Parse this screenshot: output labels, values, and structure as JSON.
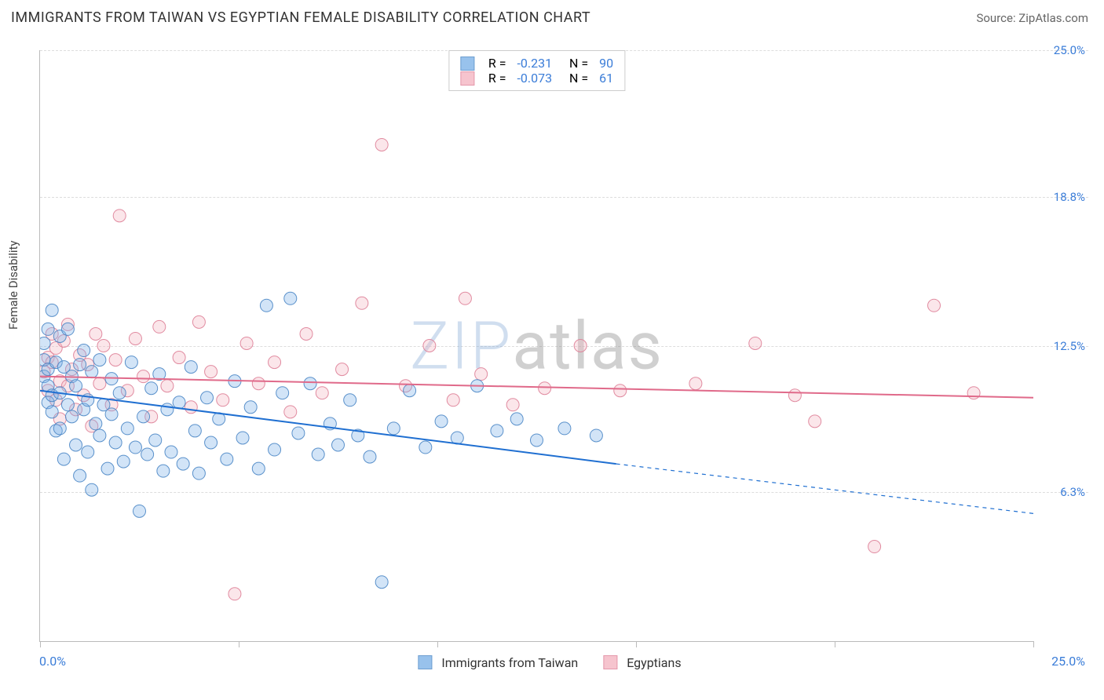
{
  "title": "IMMIGRANTS FROM TAIWAN VS EGYPTIAN FEMALE DISABILITY CORRELATION CHART",
  "source": "Source: ZipAtlas.com",
  "watermark_zip": "ZIP",
  "watermark_atlas": "atlas",
  "chart": {
    "type": "scatter",
    "background_color": "#ffffff",
    "grid_color": "#dddddd",
    "axis_color": "#bbbbbb",
    "y_label": "Female Disability",
    "y_label_color": "#444444",
    "xlim": [
      0,
      25
    ],
    "ylim": [
      0,
      25
    ],
    "x_ticks": [
      0,
      5,
      10,
      15,
      20,
      25
    ],
    "y_ticks": [
      {
        "v": 6.3,
        "label": "6.3%"
      },
      {
        "v": 12.5,
        "label": "12.5%"
      },
      {
        "v": 18.8,
        "label": "18.8%"
      },
      {
        "v": 25.0,
        "label": "25.0%"
      }
    ],
    "y_tick_color": "#3b7dd8",
    "x_label_min": "0.0%",
    "x_label_max": "25.0%",
    "x_label_color": "#3b7dd8",
    "marker_radius": 8,
    "marker_fill_opacity": 0.35,
    "marker_stroke_opacity": 0.9,
    "marker_stroke_width": 1,
    "line_width": 2,
    "series": [
      {
        "name": "Immigrants from Taiwan",
        "fill": "#7fb3e8",
        "stroke": "#4a86c5",
        "line_color": "#1f6fd1",
        "R": "-0.231",
        "N": "90",
        "trend": {
          "x0": 0,
          "y0": 10.6,
          "x1": 14.5,
          "y1": 7.5,
          "x2": 25,
          "y2": 5.4
        },
        "points": [
          [
            0.1,
            11.2
          ],
          [
            0.1,
            11.9
          ],
          [
            0.1,
            12.6
          ],
          [
            0.2,
            10.8
          ],
          [
            0.2,
            13.2
          ],
          [
            0.2,
            10.1
          ],
          [
            0.2,
            11.5
          ],
          [
            0.3,
            14.0
          ],
          [
            0.3,
            9.7
          ],
          [
            0.3,
            10.4
          ],
          [
            0.4,
            11.8
          ],
          [
            0.4,
            8.9
          ],
          [
            0.5,
            12.9
          ],
          [
            0.5,
            9.0
          ],
          [
            0.5,
            10.5
          ],
          [
            0.6,
            11.6
          ],
          [
            0.6,
            7.7
          ],
          [
            0.7,
            13.2
          ],
          [
            0.7,
            10.0
          ],
          [
            0.8,
            9.5
          ],
          [
            0.8,
            11.2
          ],
          [
            0.9,
            8.3
          ],
          [
            0.9,
            10.8
          ],
          [
            1.0,
            11.7
          ],
          [
            1.0,
            7.0
          ],
          [
            1.1,
            9.8
          ],
          [
            1.1,
            12.3
          ],
          [
            1.2,
            8.0
          ],
          [
            1.2,
            10.2
          ],
          [
            1.3,
            11.4
          ],
          [
            1.3,
            6.4
          ],
          [
            1.4,
            9.2
          ],
          [
            1.5,
            11.9
          ],
          [
            1.5,
            8.7
          ],
          [
            1.6,
            10.0
          ],
          [
            1.7,
            7.3
          ],
          [
            1.8,
            9.6
          ],
          [
            1.8,
            11.1
          ],
          [
            1.9,
            8.4
          ],
          [
            2.0,
            10.5
          ],
          [
            2.1,
            7.6
          ],
          [
            2.2,
            9.0
          ],
          [
            2.3,
            11.8
          ],
          [
            2.4,
            8.2
          ],
          [
            2.5,
            5.5
          ],
          [
            2.6,
            9.5
          ],
          [
            2.7,
            7.9
          ],
          [
            2.8,
            10.7
          ],
          [
            2.9,
            8.5
          ],
          [
            3.0,
            11.3
          ],
          [
            3.1,
            7.2
          ],
          [
            3.2,
            9.8
          ],
          [
            3.3,
            8.0
          ],
          [
            3.5,
            10.1
          ],
          [
            3.6,
            7.5
          ],
          [
            3.8,
            11.6
          ],
          [
            3.9,
            8.9
          ],
          [
            4.0,
            7.1
          ],
          [
            4.2,
            10.3
          ],
          [
            4.3,
            8.4
          ],
          [
            4.5,
            9.4
          ],
          [
            4.7,
            7.7
          ],
          [
            4.9,
            11.0
          ],
          [
            5.1,
            8.6
          ],
          [
            5.3,
            9.9
          ],
          [
            5.5,
            7.3
          ],
          [
            5.7,
            14.2
          ],
          [
            5.9,
            8.1
          ],
          [
            6.1,
            10.5
          ],
          [
            6.3,
            14.5
          ],
          [
            6.5,
            8.8
          ],
          [
            6.8,
            10.9
          ],
          [
            7.0,
            7.9
          ],
          [
            7.3,
            9.2
          ],
          [
            7.5,
            8.3
          ],
          [
            7.8,
            10.2
          ],
          [
            8.0,
            8.7
          ],
          [
            8.3,
            7.8
          ],
          [
            8.6,
            2.5
          ],
          [
            8.9,
            9.0
          ],
          [
            9.3,
            10.6
          ],
          [
            9.7,
            8.2
          ],
          [
            10.1,
            9.3
          ],
          [
            10.5,
            8.6
          ],
          [
            11.0,
            10.8
          ],
          [
            11.5,
            8.9
          ],
          [
            12.0,
            9.4
          ],
          [
            12.5,
            8.5
          ],
          [
            13.2,
            9.0
          ],
          [
            14.0,
            8.7
          ]
        ]
      },
      {
        "name": "Egyptians",
        "fill": "#f4b6c2",
        "stroke": "#de7f97",
        "line_color": "#e06a8a",
        "R": "-0.073",
        "N": "61",
        "trend": {
          "x0": 0,
          "y0": 11.2,
          "x1": 25,
          "y1": 10.3
        },
        "points": [
          [
            0.1,
            11.4
          ],
          [
            0.2,
            12.0
          ],
          [
            0.2,
            10.6
          ],
          [
            0.3,
            11.8
          ],
          [
            0.3,
            13.0
          ],
          [
            0.4,
            10.2
          ],
          [
            0.4,
            12.4
          ],
          [
            0.5,
            11.0
          ],
          [
            0.5,
            9.4
          ],
          [
            0.6,
            12.7
          ],
          [
            0.7,
            10.8
          ],
          [
            0.7,
            13.4
          ],
          [
            0.8,
            11.5
          ],
          [
            0.9,
            9.8
          ],
          [
            1.0,
            12.1
          ],
          [
            1.1,
            10.4
          ],
          [
            1.2,
            11.7
          ],
          [
            1.3,
            9.1
          ],
          [
            1.4,
            13.0
          ],
          [
            1.5,
            10.9
          ],
          [
            1.6,
            12.5
          ],
          [
            1.8,
            10.0
          ],
          [
            1.9,
            11.9
          ],
          [
            2.0,
            18.0
          ],
          [
            2.2,
            10.6
          ],
          [
            2.4,
            12.8
          ],
          [
            2.6,
            11.2
          ],
          [
            2.8,
            9.5
          ],
          [
            3.0,
            13.3
          ],
          [
            3.2,
            10.8
          ],
          [
            3.5,
            12.0
          ],
          [
            3.8,
            9.9
          ],
          [
            4.0,
            13.5
          ],
          [
            4.3,
            11.4
          ],
          [
            4.6,
            10.2
          ],
          [
            4.9,
            2.0
          ],
          [
            5.2,
            12.6
          ],
          [
            5.5,
            10.9
          ],
          [
            5.9,
            11.8
          ],
          [
            6.3,
            9.7
          ],
          [
            6.7,
            13.0
          ],
          [
            7.1,
            10.5
          ],
          [
            7.6,
            11.5
          ],
          [
            8.1,
            14.3
          ],
          [
            8.6,
            21.0
          ],
          [
            9.2,
            10.8
          ],
          [
            9.8,
            12.5
          ],
          [
            10.4,
            10.2
          ],
          [
            10.7,
            14.5
          ],
          [
            11.1,
            11.3
          ],
          [
            11.9,
            10.0
          ],
          [
            12.7,
            10.7
          ],
          [
            13.6,
            12.5
          ],
          [
            14.6,
            10.6
          ],
          [
            16.5,
            10.9
          ],
          [
            18.0,
            12.6
          ],
          [
            19.0,
            10.4
          ],
          [
            19.5,
            9.3
          ],
          [
            21.0,
            4.0
          ],
          [
            22.5,
            14.2
          ],
          [
            23.5,
            10.5
          ]
        ]
      }
    ],
    "legend_swatch_size": 18,
    "stats_box_border": "#cccccc",
    "stat_value_color": "#3b7dd8"
  }
}
